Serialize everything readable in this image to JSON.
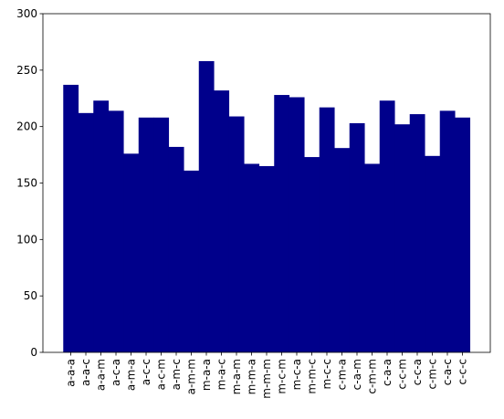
{
  "chart_data": {
    "type": "bar",
    "categories": [
      "a-a-a",
      "a-a-c",
      "a-a-m",
      "a-c-a",
      "a-m-a",
      "a-c-c",
      "a-c-m",
      "a-m-c",
      "a-m-m",
      "m-a-a",
      "m-a-c",
      "m-a-m",
      "m-m-a",
      "m-m-m",
      "m-c-m",
      "m-c-a",
      "m-m-c",
      "m-c-c",
      "c-m-a",
      "c-a-m",
      "c-m-m",
      "c-a-a",
      "c-c-m",
      "c-c-a",
      "c-m-c",
      "c-a-c",
      "c-c-c"
    ],
    "values": [
      237,
      212,
      223,
      214,
      176,
      208,
      208,
      182,
      161,
      258,
      232,
      209,
      167,
      165,
      228,
      226,
      173,
      217,
      181,
      203,
      167,
      223,
      202,
      211,
      174,
      214,
      208
    ],
    "color": "#00008b",
    "ylim": [
      0,
      300
    ],
    "yticks": [
      0,
      50,
      100,
      150,
      200,
      250,
      300
    ],
    "grid": false
  }
}
